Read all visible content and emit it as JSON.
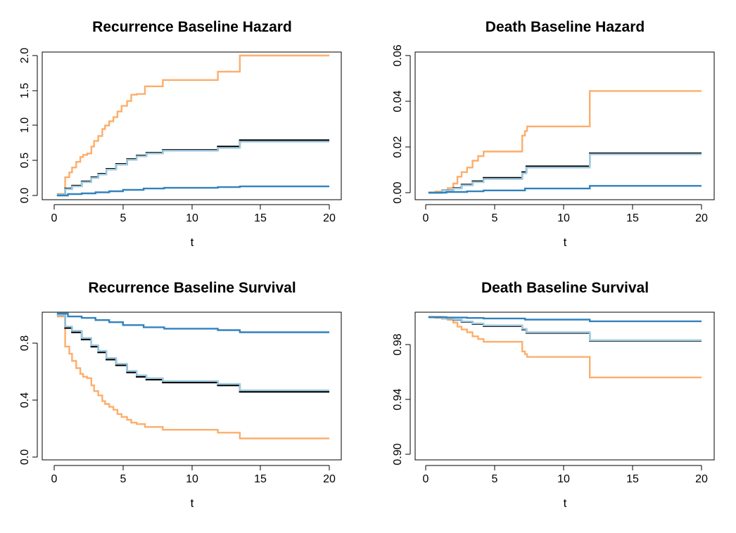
{
  "chart_data": [
    {
      "type": "line",
      "title": "Recurrence Baseline Hazard",
      "xlabel": "t",
      "ylabel": "",
      "xlim": [
        0,
        20
      ],
      "ylim": [
        0,
        2.0
      ],
      "x_ticks": [
        "0",
        "5",
        "10",
        "15",
        "20"
      ],
      "y_ticks": [
        "0.0",
        "0.5",
        "1.0",
        "1.5",
        "2.0"
      ],
      "grid": false,
      "legend": "none",
      "step": true,
      "series": [
        {
          "color": "#fdae6b",
          "x": [
            0.2,
            0.8,
            1.1,
            1.3,
            1.6,
            1.9,
            2.1,
            2.4,
            2.7,
            2.9,
            3.2,
            3.5,
            3.7,
            4.0,
            4.3,
            4.6,
            4.9,
            5.3,
            5.6,
            6.0,
            6.6,
            7.9,
            11.9,
            13.5,
            20.0
          ],
          "y": [
            0.02,
            0.26,
            0.33,
            0.4,
            0.48,
            0.55,
            0.58,
            0.6,
            0.7,
            0.78,
            0.85,
            0.95,
            1.0,
            1.06,
            1.12,
            1.2,
            1.28,
            1.35,
            1.44,
            1.45,
            1.56,
            1.65,
            1.77,
            2.0,
            2.0
          ]
        },
        {
          "color": "#000000",
          "x": [
            0.2,
            0.8,
            1.3,
            2.0,
            2.7,
            3.2,
            3.8,
            4.5,
            5.3,
            6.0,
            6.7,
            7.9,
            11.9,
            13.5,
            20.0
          ],
          "y": [
            0.01,
            0.1,
            0.14,
            0.2,
            0.26,
            0.31,
            0.38,
            0.45,
            0.52,
            0.57,
            0.61,
            0.65,
            0.7,
            0.79,
            0.79
          ]
        },
        {
          "color": "#9ecae1",
          "x": [
            0.2,
            0.8,
            1.3,
            2.0,
            2.7,
            3.2,
            3.8,
            4.5,
            5.3,
            6.0,
            6.7,
            7.9,
            11.9,
            13.5,
            20.0
          ],
          "y": [
            0.01,
            0.09,
            0.13,
            0.19,
            0.25,
            0.3,
            0.37,
            0.44,
            0.51,
            0.56,
            0.6,
            0.64,
            0.68,
            0.77,
            0.77
          ]
        },
        {
          "color": "#3182bd",
          "x": [
            0.2,
            1.0,
            2.0,
            3.0,
            4.0,
            5.0,
            6.5,
            8.0,
            11.9,
            13.5,
            20.0
          ],
          "y": [
            0.0,
            0.02,
            0.03,
            0.045,
            0.06,
            0.08,
            0.1,
            0.11,
            0.12,
            0.13,
            0.13
          ]
        }
      ]
    },
    {
      "type": "line",
      "title": "Death Baseline Hazard",
      "xlabel": "t",
      "ylabel": "",
      "xlim": [
        0,
        20
      ],
      "ylim": [
        0,
        0.06
      ],
      "x_ticks": [
        "0",
        "5",
        "10",
        "15",
        "20"
      ],
      "y_ticks": [
        "0.00",
        "0.02",
        "0.04",
        "0.06"
      ],
      "grid": false,
      "legend": "none",
      "step": true,
      "series": [
        {
          "color": "#fdae6b",
          "x": [
            0.2,
            0.7,
            1.2,
            1.6,
            2.0,
            2.3,
            2.6,
            3.0,
            3.4,
            3.8,
            4.2,
            7.0,
            7.2,
            7.35,
            11.9,
            20.0
          ],
          "y": [
            0.0,
            0.0005,
            0.001,
            0.002,
            0.004,
            0.007,
            0.009,
            0.011,
            0.014,
            0.016,
            0.018,
            0.025,
            0.027,
            0.029,
            0.0445,
            0.0445
          ]
        },
        {
          "color": "#000000",
          "x": [
            0.2,
            1.2,
            2.0,
            2.6,
            3.4,
            4.2,
            7.0,
            7.3,
            11.9,
            20.0
          ],
          "y": [
            0.0,
            0.001,
            0.002,
            0.0035,
            0.005,
            0.0065,
            0.009,
            0.0115,
            0.0172,
            0.0172
          ]
        },
        {
          "color": "#9ecae1",
          "x": [
            0.2,
            1.2,
            2.0,
            2.6,
            3.4,
            4.2,
            7.0,
            7.3,
            11.9,
            20.0
          ],
          "y": [
            0.0,
            0.0009,
            0.0018,
            0.0032,
            0.0046,
            0.006,
            0.0085,
            0.011,
            0.0168,
            0.0168
          ]
        },
        {
          "color": "#3182bd",
          "x": [
            0.2,
            1.5,
            3.0,
            4.2,
            7.2,
            11.9,
            20.0
          ],
          "y": [
            0.0,
            0.0003,
            0.0006,
            0.001,
            0.0018,
            0.003,
            0.003
          ]
        }
      ]
    },
    {
      "type": "line",
      "title": "Recurrence Baseline Survival",
      "xlabel": "t",
      "ylabel": "",
      "xlim": [
        0,
        20
      ],
      "ylim": [
        0,
        1.0
      ],
      "x_ticks": [
        "0",
        "5",
        "10",
        "15",
        "20"
      ],
      "y_ticks": [
        "0.0",
        "0.4",
        "0.8"
      ],
      "grid": false,
      "legend": "none",
      "step": true,
      "series": [
        {
          "color": "#fdae6b",
          "x": [
            0.2,
            0.8,
            1.1,
            1.3,
            1.6,
            1.9,
            2.1,
            2.4,
            2.7,
            2.9,
            3.2,
            3.5,
            3.7,
            4.0,
            4.3,
            4.6,
            4.9,
            5.3,
            5.6,
            6.0,
            6.6,
            7.9,
            11.9,
            13.5,
            20.0
          ],
          "y": [
            0.98,
            0.77,
            0.72,
            0.67,
            0.62,
            0.58,
            0.56,
            0.55,
            0.5,
            0.46,
            0.43,
            0.39,
            0.37,
            0.35,
            0.33,
            0.3,
            0.28,
            0.26,
            0.24,
            0.23,
            0.21,
            0.19,
            0.17,
            0.13,
            0.13
          ]
        },
        {
          "color": "#000000",
          "x": [
            0.2,
            0.8,
            1.3,
            2.0,
            2.7,
            3.2,
            3.8,
            4.5,
            5.3,
            6.0,
            6.7,
            7.9,
            11.9,
            13.5,
            20.0
          ],
          "y": [
            0.99,
            0.9,
            0.87,
            0.82,
            0.77,
            0.73,
            0.68,
            0.64,
            0.59,
            0.56,
            0.54,
            0.52,
            0.5,
            0.455,
            0.455
          ]
        },
        {
          "color": "#9ecae1",
          "x": [
            0.2,
            0.8,
            1.3,
            2.0,
            2.7,
            3.2,
            3.8,
            4.5,
            5.3,
            6.0,
            6.7,
            7.9,
            11.9,
            13.5,
            20.0
          ],
          "y": [
            0.99,
            0.91,
            0.88,
            0.83,
            0.78,
            0.74,
            0.69,
            0.65,
            0.6,
            0.57,
            0.55,
            0.53,
            0.51,
            0.465,
            0.465
          ]
        },
        {
          "color": "#3182bd",
          "x": [
            0.2,
            1.0,
            2.0,
            3.0,
            4.0,
            5.0,
            6.5,
            8.0,
            11.9,
            13.5,
            20.0
          ],
          "y": [
            1.0,
            0.98,
            0.97,
            0.955,
            0.94,
            0.92,
            0.905,
            0.895,
            0.885,
            0.87,
            0.87
          ]
        }
      ]
    },
    {
      "type": "line",
      "title": "Death Baseline Survival",
      "xlabel": "t",
      "ylabel": "",
      "xlim": [
        0,
        20
      ],
      "ylim": [
        0.9,
        1.0
      ],
      "x_ticks": [
        "0",
        "5",
        "10",
        "15",
        "20"
      ],
      "y_ticks": [
        "0.90",
        "0.94",
        "0.98"
      ],
      "grid": false,
      "legend": "none",
      "step": true,
      "series": [
        {
          "color": "#fdae6b",
          "x": [
            0.2,
            0.7,
            1.2,
            1.6,
            2.0,
            2.3,
            2.6,
            3.0,
            3.4,
            3.8,
            4.2,
            7.0,
            7.2,
            7.35,
            11.9,
            20.0
          ],
          "y": [
            1.0,
            0.9995,
            0.999,
            0.998,
            0.996,
            0.993,
            0.991,
            0.989,
            0.986,
            0.984,
            0.982,
            0.975,
            0.973,
            0.971,
            0.956,
            0.956
          ]
        },
        {
          "color": "#000000",
          "x": [
            0.2,
            1.2,
            2.0,
            2.6,
            3.4,
            4.2,
            7.0,
            7.3,
            11.9,
            20.0
          ],
          "y": [
            1.0,
            0.999,
            0.998,
            0.9965,
            0.995,
            0.9935,
            0.991,
            0.9885,
            0.9828,
            0.9828
          ]
        },
        {
          "color": "#9ecae1",
          "x": [
            0.2,
            1.2,
            2.0,
            2.6,
            3.4,
            4.2,
            7.0,
            7.3,
            11.9,
            20.0
          ],
          "y": [
            1.0,
            0.9991,
            0.9982,
            0.9968,
            0.9954,
            0.994,
            0.9915,
            0.989,
            0.9832,
            0.9832
          ]
        },
        {
          "color": "#3182bd",
          "x": [
            0.2,
            1.5,
            3.0,
            4.2,
            7.2,
            11.9,
            20.0
          ],
          "y": [
            1.0,
            0.9997,
            0.9994,
            0.999,
            0.9982,
            0.997,
            0.997
          ]
        }
      ]
    }
  ]
}
